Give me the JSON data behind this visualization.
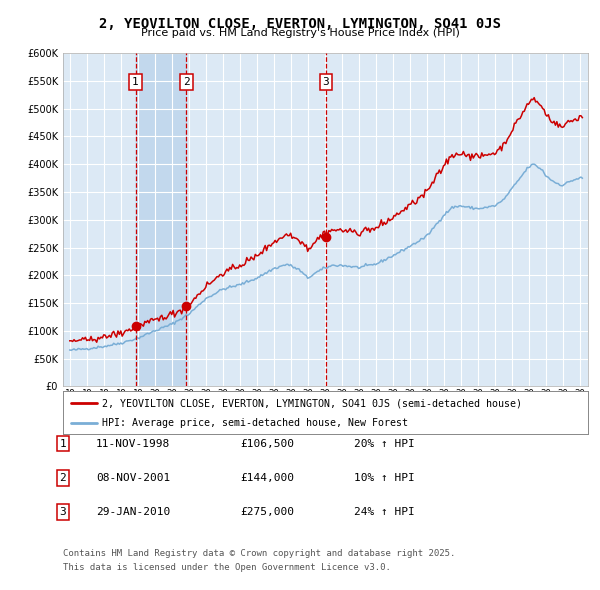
{
  "title": "2, YEOVILTON CLOSE, EVERTON, LYMINGTON, SO41 0JS",
  "subtitle": "Price paid vs. HM Land Registry's House Price Index (HPI)",
  "legend_house": "2, YEOVILTON CLOSE, EVERTON, LYMINGTON, SO41 0JS (semi-detached house)",
  "legend_hpi": "HPI: Average price, semi-detached house, New Forest",
  "footer_line1": "Contains HM Land Registry data © Crown copyright and database right 2025.",
  "footer_line2": "This data is licensed under the Open Government Licence v3.0.",
  "sales": [
    {
      "num": 1,
      "date": "11-NOV-1998",
      "price": "£106,500",
      "pct": "20% ↑ HPI",
      "x_year": 1998.87
    },
    {
      "num": 2,
      "date": "08-NOV-2001",
      "price": "£144,000",
      "pct": "10% ↑ HPI",
      "x_year": 2001.86
    },
    {
      "num": 3,
      "date": "29-JAN-2010",
      "price": "£275,000",
      "pct": "24% ↑ HPI",
      "x_year": 2010.08
    }
  ],
  "background_color": "#ffffff",
  "plot_bg_color": "#dce9f5",
  "grid_color": "#ffffff",
  "shaded_region_color": "#c2d8ed",
  "red_line_color": "#cc0000",
  "blue_line_color": "#7aaed6",
  "dashed_color": "#cc0000",
  "ylim": [
    0,
    600000
  ],
  "xlim_start": 1994.6,
  "xlim_end": 2025.5
}
